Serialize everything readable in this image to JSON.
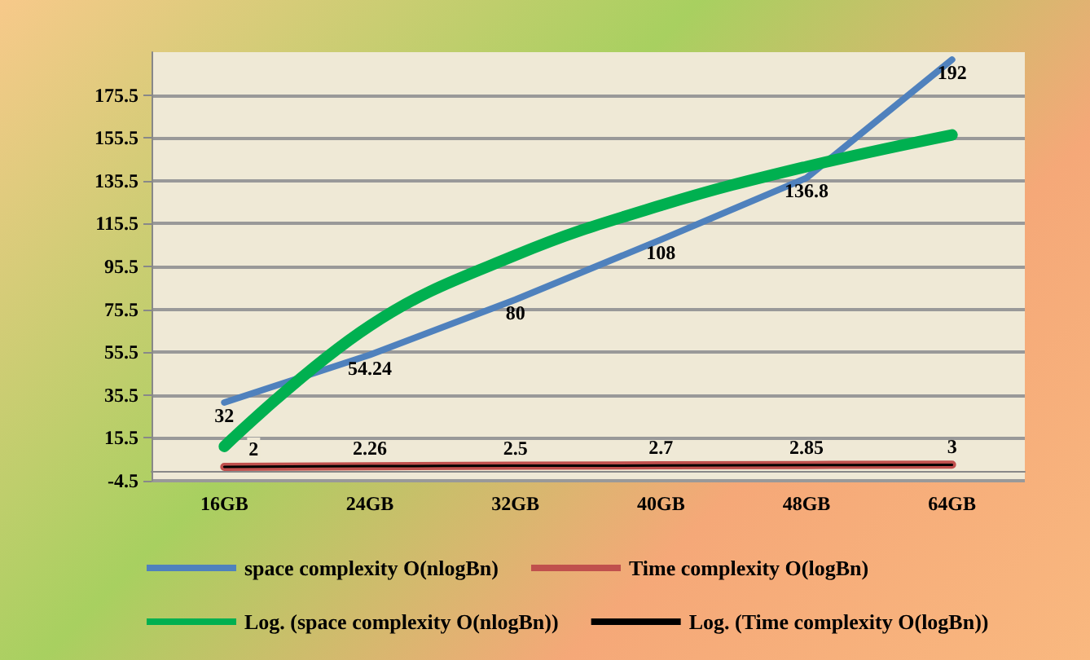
{
  "chart_data": {
    "type": "line",
    "categories": [
      "16GB",
      "24GB",
      "32GB",
      "40GB",
      "48GB",
      "64GB"
    ],
    "series": [
      {
        "name": "space complexity O(nlogBn)",
        "color": "#4f81bd",
        "values": [
          32,
          54.24,
          80,
          108,
          136.8,
          192
        ],
        "value_labels": [
          "32",
          "54.24",
          "80",
          "108",
          "136.8",
          "192"
        ]
      },
      {
        "name": "Time complexity O(logBn)",
        "color": "#c0504d",
        "values": [
          2,
          2.26,
          2.5,
          2.7,
          2.85,
          3
        ],
        "value_labels": [
          "2",
          "2.26",
          "2.5",
          "2.7",
          "2.85",
          "3"
        ]
      },
      {
        "name": "Log. (space complexity O(nlogBn))",
        "color": "#00b050",
        "values": [
          11.5,
          67.8,
          100.7,
          124,
          142.1,
          156.9
        ]
      },
      {
        "name": "Log. (Time complexity O(logBn))",
        "color": "#000000",
        "values": [
          2,
          2.3,
          2.5,
          2.6,
          2.8,
          2.9
        ]
      }
    ],
    "ylim": [
      -4.5,
      195.5
    ],
    "yticks": [
      -4.5,
      15.5,
      35.5,
      55.5,
      75.5,
      95.5,
      115.5,
      135.5,
      155.5,
      175.5
    ],
    "grid": "y",
    "legend": "bottom",
    "marker": "none",
    "line_style": "solid"
  }
}
